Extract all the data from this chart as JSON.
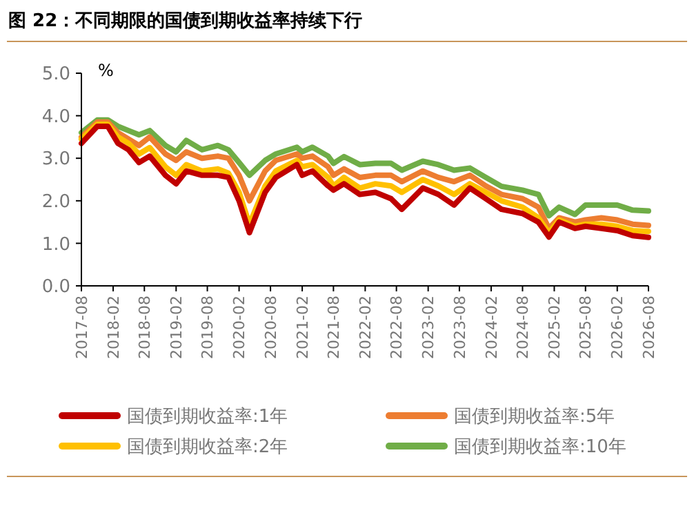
{
  "chart_data": {
    "type": "line",
    "title": "图 22：不同期限的国债到期收益率持续下行",
    "ylabel": "%",
    "x": [
      "2017-08",
      "2017-11",
      "2018-01",
      "2018-03",
      "2018-05",
      "2018-07",
      "2018-09",
      "2018-12",
      "2019-02",
      "2019-04",
      "2019-07",
      "2019-10",
      "2019-12",
      "2020-02",
      "2020-04",
      "2020-07",
      "2020-09",
      "2021-01",
      "2021-02",
      "2021-04",
      "2021-07",
      "2021-08",
      "2021-10",
      "2022-01",
      "2022-04",
      "2022-07",
      "2022-09",
      "2023-01",
      "2023-04",
      "2023-07",
      "2023-10",
      "2024-01",
      "2024-04",
      "2024-08",
      "2024-11",
      "2025-01",
      "2025-03",
      "2025-06",
      "2025-08",
      "2025-11",
      "2026-02",
      "2026-05",
      "2026-08"
    ],
    "series": [
      {
        "name": "国债到期收益率:1年",
        "color": "#c00000",
        "values": [
          3.35,
          3.75,
          3.75,
          3.35,
          3.2,
          2.9,
          3.05,
          2.6,
          2.4,
          2.7,
          2.6,
          2.6,
          2.55,
          2.0,
          1.25,
          2.2,
          2.55,
          2.85,
          2.6,
          2.7,
          2.35,
          2.25,
          2.4,
          2.15,
          2.2,
          2.05,
          1.8,
          2.3,
          2.15,
          1.9,
          2.3,
          2.05,
          1.8,
          1.7,
          1.5,
          1.15,
          1.5,
          1.35,
          1.4,
          1.35,
          1.3,
          1.18,
          1.14
        ]
      },
      {
        "name": "国债到期收益率:2年",
        "color": "#ffc000",
        "values": [
          3.45,
          3.8,
          3.8,
          3.5,
          3.35,
          3.1,
          3.25,
          2.8,
          2.6,
          2.85,
          2.7,
          2.75,
          2.65,
          2.2,
          1.45,
          2.35,
          2.7,
          2.95,
          2.8,
          2.85,
          2.55,
          2.35,
          2.55,
          2.3,
          2.4,
          2.35,
          2.2,
          2.5,
          2.35,
          2.15,
          2.4,
          2.2,
          2.0,
          1.85,
          1.6,
          1.25,
          1.55,
          1.4,
          1.45,
          1.45,
          1.4,
          1.3,
          1.28
        ]
      },
      {
        "name": "国债到期收益率:5年",
        "color": "#ed7d31",
        "values": [
          3.5,
          3.85,
          3.85,
          3.6,
          3.45,
          3.3,
          3.5,
          3.1,
          2.95,
          3.15,
          3.0,
          3.05,
          3.0,
          2.6,
          2.0,
          2.7,
          2.95,
          3.1,
          3.0,
          3.05,
          2.8,
          2.6,
          2.75,
          2.55,
          2.6,
          2.6,
          2.45,
          2.7,
          2.55,
          2.45,
          2.6,
          2.35,
          2.15,
          2.05,
          1.85,
          1.35,
          1.6,
          1.5,
          1.55,
          1.6,
          1.55,
          1.45,
          1.42
        ]
      },
      {
        "name": "国债到期收益率:10年",
        "color": "#70ad47",
        "values": [
          3.6,
          3.9,
          3.9,
          3.75,
          3.65,
          3.55,
          3.65,
          3.3,
          3.15,
          3.42,
          3.2,
          3.3,
          3.2,
          2.9,
          2.6,
          2.95,
          3.1,
          3.26,
          3.15,
          3.26,
          3.05,
          2.88,
          3.04,
          2.85,
          2.88,
          2.88,
          2.72,
          2.93,
          2.85,
          2.72,
          2.77,
          2.55,
          2.34,
          2.25,
          2.15,
          1.65,
          1.85,
          1.68,
          1.9,
          1.9,
          1.9,
          1.78,
          1.76
        ]
      }
    ],
    "xlim": [
      "2017-08",
      "2026-08"
    ],
    "xticks": [
      "2017-08",
      "2018-02",
      "2018-08",
      "2019-02",
      "2019-08",
      "2020-02",
      "2020-08",
      "2021-02",
      "2021-08",
      "2022-02",
      "2022-08",
      "2023-02",
      "2023-08",
      "2024-02",
      "2024-08",
      "2025-02",
      "2025-08",
      "2026-02",
      "2026-08"
    ],
    "ylim": [
      0,
      5
    ],
    "yticks": [
      {
        "value": 0,
        "label": "0.0"
      },
      {
        "value": 1,
        "label": "1.0"
      },
      {
        "value": 2,
        "label": "2.0"
      },
      {
        "value": 3,
        "label": "3.0"
      },
      {
        "value": 4,
        "label": "4.0"
      },
      {
        "value": 5,
        "label": "5.0"
      }
    ],
    "grid": false,
    "legend": "bottom",
    "line_style": "solid",
    "marker": "none"
  }
}
